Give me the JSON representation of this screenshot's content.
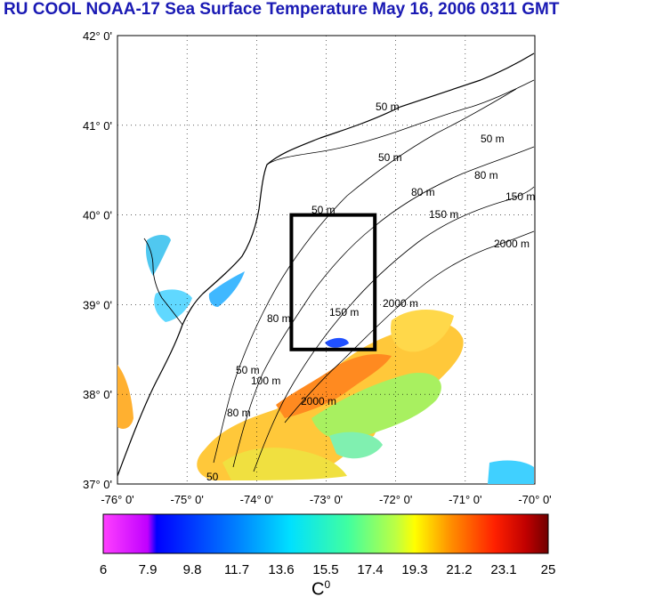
{
  "title": "RU COOL  NOAA-17 Sea Surface Temperature May 16, 2006 0311 GMT",
  "axes": {
    "lon_ticks": [
      "-76° 0'",
      "-75° 0'",
      "-74° 0'",
      "-73° 0'",
      "-72° 0'",
      "-71° 0'",
      "-70° 0'"
    ],
    "lat_ticks": [
      "42° 0'",
      "41° 0'",
      "40° 0'",
      "39° 0'",
      "38° 0'",
      "37° 0'"
    ],
    "lon_range": [
      -76,
      -70
    ],
    "lat_range": [
      37,
      42
    ]
  },
  "study_box": {
    "lon_min": -73.5,
    "lon_max": -72.3,
    "lat_min": 38.5,
    "lat_max": 40.0
  },
  "contour_labels": [
    "50 m",
    "50 m",
    "80 m",
    "50 m",
    "80 m",
    "150 m",
    "150 m",
    "2000 m",
    "50 m",
    "80 m",
    "150 m",
    "2000 m",
    "50 m",
    "80 m",
    "100 m",
    "2000 m",
    "50"
  ],
  "colorbar": {
    "ticks": [
      "6",
      "7.9",
      "9.8",
      "11.7",
      "13.6",
      "15.5",
      "17.4",
      "19.3",
      "21.2",
      "23.1",
      "25"
    ],
    "min": 6,
    "max": 25,
    "unit": "C",
    "unit_superscript": "0",
    "colors": [
      "#ff40ff",
      "#c000ff",
      "#0000ff",
      "#0080ff",
      "#00e0ff",
      "#40ffa0",
      "#c0ff40",
      "#ffff00",
      "#ff9000",
      "#ff2000",
      "#c00000",
      "#700000"
    ]
  }
}
